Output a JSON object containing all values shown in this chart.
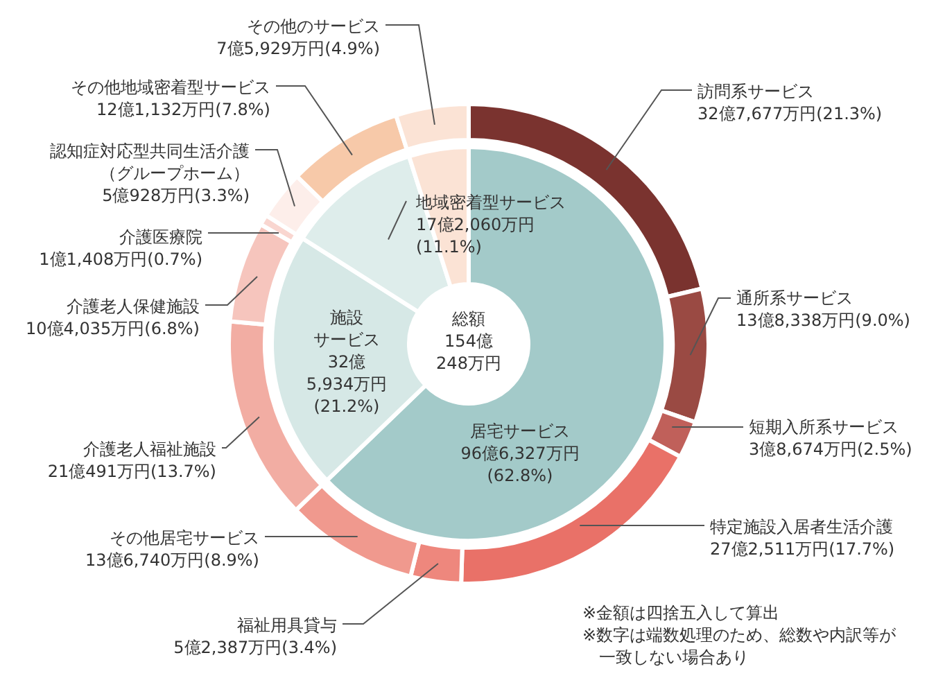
{
  "chart_data": [
    {
      "type": "donut",
      "categories": [
        "居宅サービス",
        "施設サービス",
        "地域密着型サービス",
        null
      ],
      "values": [
        62.8,
        21.2,
        11.1,
        4.9
      ],
      "colors": [
        "#a3cac9",
        "#d6e8e6",
        "#deedeb",
        "#fbe3d5"
      ],
      "value_labels": [
        "96億6,327万円(62.8%)",
        "32億5,934万円(21.2%)",
        "17億2,060万円(11.1%)",
        null
      ],
      "annotations": [
        "総額154億248万円"
      ]
    },
    {
      "type": "donut",
      "categories": [
        "訪問系サービス",
        "通所系サービス",
        "短期入所系サービス",
        "特定施設入居者生活介護",
        "福祉用具貸与",
        "その他居宅サービス",
        "介護老人福祉施設",
        "介護老人保健施設",
        "介護医療院",
        "認知症対応型共同生活介護（グループホーム）",
        "その他地域密着型サービス",
        "その他のサービス"
      ],
      "values": [
        21.3,
        9.0,
        2.5,
        17.7,
        3.4,
        8.9,
        13.7,
        6.8,
        0.7,
        3.3,
        7.8,
        4.9
      ],
      "colors": [
        "#7a332f",
        "#9a4a43",
        "#c0605a",
        "#e97168",
        "#ee877d",
        "#f0998e",
        "#f2ada3",
        "#f6c5bd",
        "#f9d6d0",
        "#fdeeea",
        "#f7c9a9",
        "#fbe3d5"
      ],
      "value_labels": [
        "32億7,677万円(21.3%)",
        "13億8,338万円(9.0%)",
        "3億8,674万円(2.5%)",
        "27億2,511万円(17.7%)",
        "5億2,387万円(3.4%)",
        "13億6,740万円(8.9%)",
        "21億491万円(13.7%)",
        "10億4,035万円(6.8%)",
        "1億1,408万円(0.7%)",
        "5億928万円(3.3%)",
        "12億1,132万円(7.8%)",
        "7億5,929万円(4.9%)"
      ],
      "annotations": [
        "※金額は四捨五入して算出",
        "※数字は端数処理のため、総数や内訳等が一致しない場合あり"
      ]
    }
  ]
}
